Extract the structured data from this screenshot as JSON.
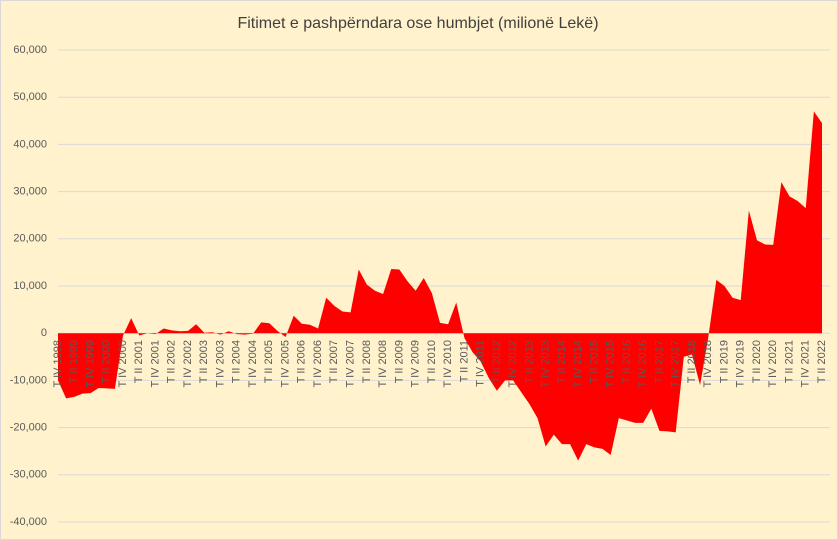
{
  "chart_data": {
    "type": "area",
    "title": "Fitimet e pashpërndara ose humbjet (milionë Lekë)",
    "color": "#ff0000",
    "grid": true,
    "ylim": [
      -40000,
      60000
    ],
    "yticks": [
      {
        "value": -40000,
        "label": "-40,000"
      },
      {
        "value": -30000,
        "label": "-30,000"
      },
      {
        "value": -20000,
        "label": "-20,000"
      },
      {
        "value": -10000,
        "label": "-10,000"
      },
      0,
      {
        "value": 10000,
        "label": "10,000"
      },
      {
        "value": 20000,
        "label": "20,000"
      },
      {
        "value": 30000,
        "label": "30,000"
      },
      {
        "value": 40000,
        "label": "40,000"
      },
      {
        "value": 50000,
        "label": "50,000"
      },
      {
        "value": 60000,
        "label": "60,000"
      }
    ],
    "categories": [
      "T IV 1998",
      null,
      "T II 1999",
      null,
      "T IV 1999",
      null,
      "T II 2000",
      null,
      "T IV 2000",
      null,
      "T II 2001",
      null,
      "T IV 2001",
      null,
      "T II 2002",
      null,
      "T IV 2002",
      null,
      "T II 2003",
      null,
      "T IV 2003",
      null,
      "T II 2004",
      null,
      "T IV 2004",
      null,
      "T II 2005",
      null,
      "T IV 2005",
      null,
      "T II 2006",
      null,
      "T IV 2006",
      null,
      "T II 2007",
      null,
      "T IV 2007",
      null,
      "T II 2008",
      null,
      "T IV 2008",
      null,
      "T II 2009",
      null,
      "T IV 2009",
      null,
      "T II 2010",
      null,
      "T IV 2010",
      null,
      "T II 2011",
      null,
      "T IV 2011",
      null,
      "T II 2012",
      null,
      "T IV 2012",
      null,
      "T II 2013",
      null,
      "T IV 2013",
      null,
      "T II 2014",
      null,
      "T IV 2014",
      null,
      "T II 2015",
      null,
      "T IV 2015",
      null,
      "T II 2016",
      null,
      "T IV 2016",
      null,
      "T II 2017",
      null,
      "T IV 2017",
      null,
      "T II 2018",
      null,
      "T IV 2018",
      null,
      "T II 2019",
      null,
      "T IV 2019",
      null,
      "T II 2020",
      null,
      "T IV 2020",
      null,
      "T II 2021",
      null,
      "T IV 2021",
      null,
      "T II 2022"
    ],
    "values": [
      -10000,
      -13800,
      -13500,
      -12800,
      -12700,
      -11600,
      -11700,
      -11800,
      -500,
      3200,
      -500,
      0,
      -200,
      1000,
      600,
      400,
      500,
      1900,
      100,
      200,
      -300,
      400,
      -200,
      -300,
      -100,
      2300,
      2100,
      500,
      -800,
      3700,
      2000,
      1800,
      1000,
      7500,
      5800,
      4600,
      4400,
      13500,
      10300,
      9000,
      8300,
      13600,
      13500,
      11000,
      9000,
      11700,
      8500,
      2200,
      1900,
      6500,
      -1000,
      -4000,
      -6000,
      -9500,
      -12200,
      -10000,
      -10000,
      -12500,
      -15000,
      -18000,
      -24000,
      -21500,
      -23500,
      -23500,
      -27000,
      -23500,
      -24200,
      -24500,
      -25800,
      -18000,
      -18500,
      -19000,
      -19000,
      -16000,
      -20700,
      -20800,
      -21000,
      -5000,
      -4500,
      -11000,
      -1000,
      11300,
      10000,
      7500,
      7000,
      26000,
      19700,
      18800,
      18700,
      32000,
      29000,
      28000,
      26500,
      47000,
      44500
    ]
  }
}
